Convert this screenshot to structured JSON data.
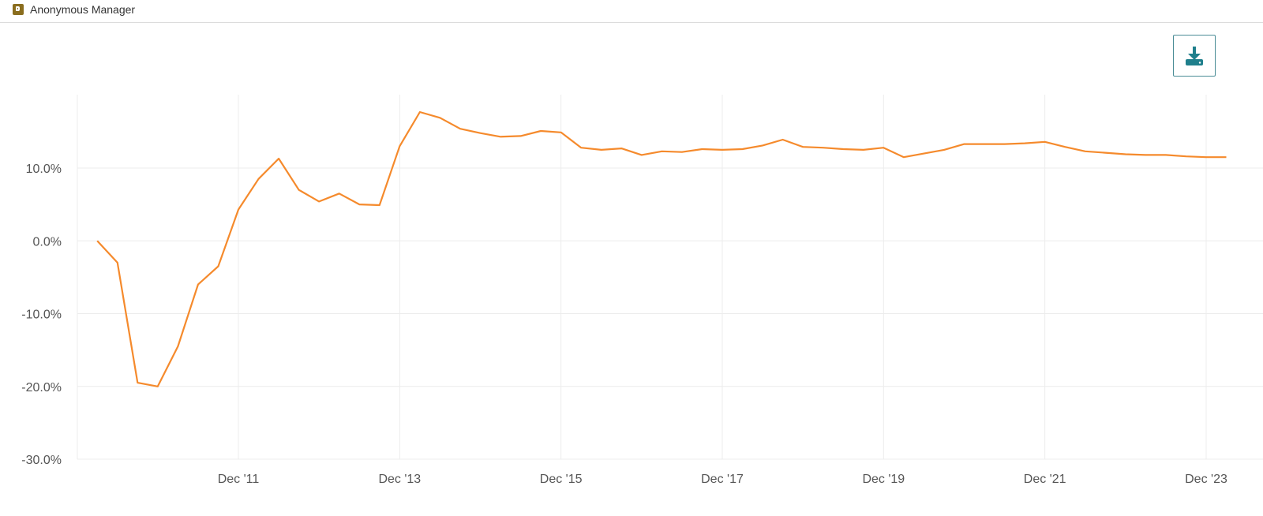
{
  "header": {
    "title": "Anonymous Manager"
  },
  "toolbar": {
    "download_icon": "download-icon"
  },
  "colors": {
    "series": "#f58a2c",
    "grid": "#ececec",
    "accent": "#1f7f8c"
  },
  "chart_data": {
    "type": "line",
    "title": "",
    "xlabel": "",
    "ylabel": "",
    "ylim": [
      -30,
      20
    ],
    "y_ticks": [
      10,
      0,
      -10,
      -20,
      -30
    ],
    "y_tick_labels": [
      "10.0%",
      "0.0%",
      "-10.0%",
      "-20.0%",
      "-30.0%"
    ],
    "x_tick_labels": [
      "Dec '11",
      "Dec '13",
      "Dec '15",
      "Dec '17",
      "Dec '19",
      "Dec '21",
      "Dec '23"
    ],
    "x_ticks": [
      "2011-12",
      "2013-12",
      "2015-12",
      "2017-12",
      "2019-12",
      "2021-12",
      "2023-12"
    ],
    "grid": true,
    "legend": "none",
    "series": [
      {
        "x": [
          "2010-03",
          "2010-06",
          "2010-09",
          "2010-12",
          "2011-03",
          "2011-06",
          "2011-09",
          "2011-12",
          "2012-03",
          "2012-06",
          "2012-09",
          "2012-12",
          "2013-03",
          "2013-06",
          "2013-09",
          "2013-12",
          "2014-03",
          "2014-06",
          "2014-09",
          "2014-12",
          "2015-03",
          "2015-06",
          "2015-09",
          "2015-12",
          "2016-03",
          "2016-06",
          "2016-09",
          "2016-12",
          "2017-03",
          "2017-06",
          "2017-09",
          "2017-12",
          "2018-03",
          "2018-06",
          "2018-09",
          "2018-12",
          "2019-03",
          "2019-06",
          "2019-09",
          "2019-12",
          "2020-03",
          "2020-06",
          "2020-09",
          "2020-12",
          "2021-03",
          "2021-06",
          "2021-09",
          "2021-12",
          "2022-03",
          "2022-06",
          "2022-09",
          "2022-12",
          "2023-03",
          "2023-06",
          "2023-09",
          "2023-12",
          "2024-03"
        ],
        "values": [
          0.0,
          -3.0,
          -19.5,
          -20.0,
          -14.5,
          -6.0,
          -3.5,
          4.3,
          8.5,
          11.3,
          7.0,
          5.4,
          6.5,
          5.0,
          4.9,
          13.0,
          17.7,
          16.9,
          15.4,
          14.8,
          14.3,
          14.4,
          15.1,
          14.9,
          12.8,
          12.5,
          12.7,
          11.8,
          12.3,
          12.2,
          12.6,
          12.5,
          12.6,
          13.1,
          13.9,
          12.9,
          12.8,
          12.6,
          12.5,
          12.8,
          11.5,
          12.0,
          12.5,
          13.3,
          13.3,
          13.3,
          13.4,
          13.6,
          12.9,
          12.3,
          12.1,
          11.9,
          11.8,
          11.8,
          11.6,
          11.5,
          11.5
        ]
      }
    ]
  }
}
